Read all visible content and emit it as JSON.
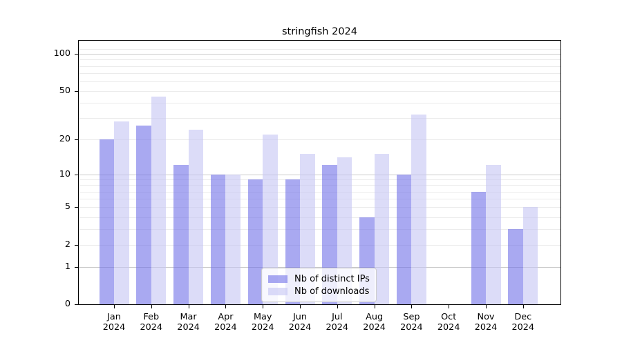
{
  "chart_data": {
    "type": "bar",
    "title": "stringfish 2024",
    "x_month_labels": [
      "Jan",
      "Feb",
      "Mar",
      "Apr",
      "May",
      "Jun",
      "Jul",
      "Aug",
      "Sep",
      "Oct",
      "Nov",
      "Dec"
    ],
    "x_year_label": "2024",
    "series": [
      {
        "name": "Nb of distinct IPs",
        "color": "rgba(112,112,232,0.6)",
        "solid_color": "#a9a9f1",
        "values": [
          20,
          26,
          12,
          10,
          9,
          9,
          12,
          4,
          10,
          0,
          7,
          3
        ]
      },
      {
        "name": "Nb of downloads",
        "color": "rgba(197,197,243,0.6)",
        "solid_color": "#dcdcf8",
        "values": [
          28,
          45,
          24,
          10,
          22,
          15,
          14,
          15,
          32,
          0,
          12,
          5
        ]
      }
    ],
    "y_axis": {
      "scale": "log1p",
      "ticks": [
        0,
        1,
        2,
        5,
        10,
        20,
        50,
        100
      ],
      "axis_max": 128,
      "grid_major_values": [
        1,
        10,
        100
      ],
      "grid_minor_values": [
        2,
        3,
        4,
        5,
        6,
        7,
        8,
        9,
        20,
        30,
        40,
        50,
        60,
        70,
        80,
        90,
        110
      ]
    },
    "grid": "horizontal",
    "legend_position": "inside-bottom-center"
  },
  "colors": {
    "background": "#ffffff",
    "axis": "#000000",
    "grid_major": "#c9c9c9",
    "grid_minor": "#ebebeb",
    "legend_border": "#cccccc",
    "legend_background": "rgba(255,255,255,0.8)"
  }
}
